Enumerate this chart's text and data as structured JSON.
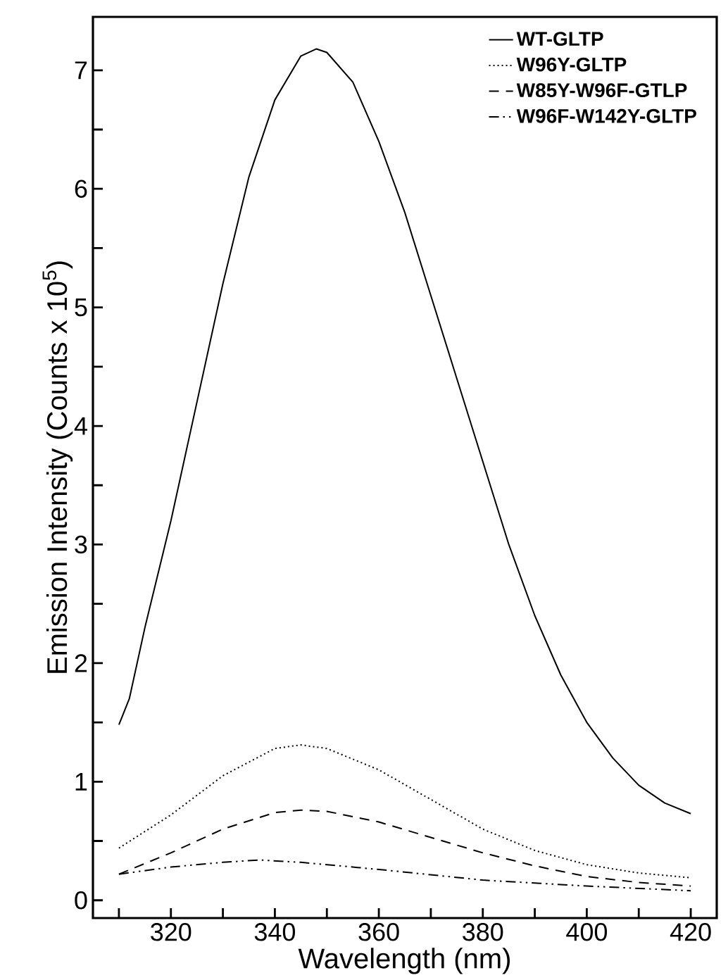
{
  "chart_data": {
    "type": "line",
    "xlabel": "Wavelength (nm)",
    "ylabel": "Emission Intensity (Counts x 10$^{5}$)",
    "xlim": [
      305,
      425
    ],
    "ylim": [
      -0.15,
      7.45
    ],
    "xticks": [
      {
        "value": 310,
        "label": null
      },
      320,
      {
        "value": 330,
        "label": null
      },
      340,
      {
        "value": 350,
        "label": null
      },
      360,
      {
        "value": 370,
        "label": null
      },
      380,
      {
        "value": 390,
        "label": null
      },
      400,
      {
        "value": 410,
        "label": null
      },
      420
    ],
    "yticks": [
      0,
      {
        "value": 0.5,
        "label": null
      },
      1,
      {
        "value": 1.5,
        "label": null
      },
      2,
      {
        "value": 2.5,
        "label": null
      },
      3,
      {
        "value": 3.5,
        "label": null
      },
      4,
      {
        "value": 4.5,
        "label": null
      },
      5,
      {
        "value": 5.5,
        "label": null
      },
      6,
      {
        "value": 6.5,
        "label": null
      },
      7
    ],
    "legend": "top right",
    "grid": false,
    "marker": "none",
    "series": [
      {
        "name": "WT-GLTP",
        "color": "#000000",
        "line_style": "solid",
        "x": [
          310,
          312,
          315,
          320,
          325,
          330,
          335,
          340,
          345,
          348,
          350,
          355,
          360,
          365,
          370,
          375,
          380,
          385,
          390,
          395,
          400,
          405,
          410,
          415,
          420
        ],
        "values": [
          1.48,
          1.7,
          2.3,
          3.2,
          4.2,
          5.2,
          6.1,
          6.75,
          7.12,
          7.18,
          7.15,
          6.9,
          6.4,
          5.8,
          5.1,
          4.4,
          3.7,
          3.0,
          2.4,
          1.9,
          1.5,
          1.2,
          0.97,
          0.82,
          0.73
        ]
      },
      {
        "name": "W96Y-GLTP",
        "color": "#000000",
        "line_style": "dotted",
        "x": [
          310,
          320,
          330,
          340,
          345,
          350,
          360,
          370,
          380,
          390,
          400,
          410,
          420
        ],
        "values": [
          0.44,
          0.72,
          1.05,
          1.28,
          1.31,
          1.28,
          1.1,
          0.85,
          0.6,
          0.42,
          0.3,
          0.23,
          0.19
        ]
      },
      {
        "name": "W85Y-W96F-GTLP",
        "color": "#000000",
        "line_style": "dashed",
        "x": [
          310,
          320,
          330,
          340,
          345,
          350,
          360,
          370,
          380,
          390,
          400,
          410,
          420
        ],
        "values": [
          0.22,
          0.4,
          0.6,
          0.74,
          0.76,
          0.75,
          0.66,
          0.53,
          0.4,
          0.29,
          0.2,
          0.15,
          0.12
        ]
      },
      {
        "name": "W96F-W142Y-GLTP",
        "color": "#000000",
        "line_style": "dashdotdot",
        "x": [
          310,
          320,
          330,
          337,
          345,
          360,
          380,
          400,
          420
        ],
        "values": [
          0.22,
          0.28,
          0.32,
          0.34,
          0.32,
          0.26,
          0.17,
          0.12,
          0.08
        ]
      }
    ]
  }
}
